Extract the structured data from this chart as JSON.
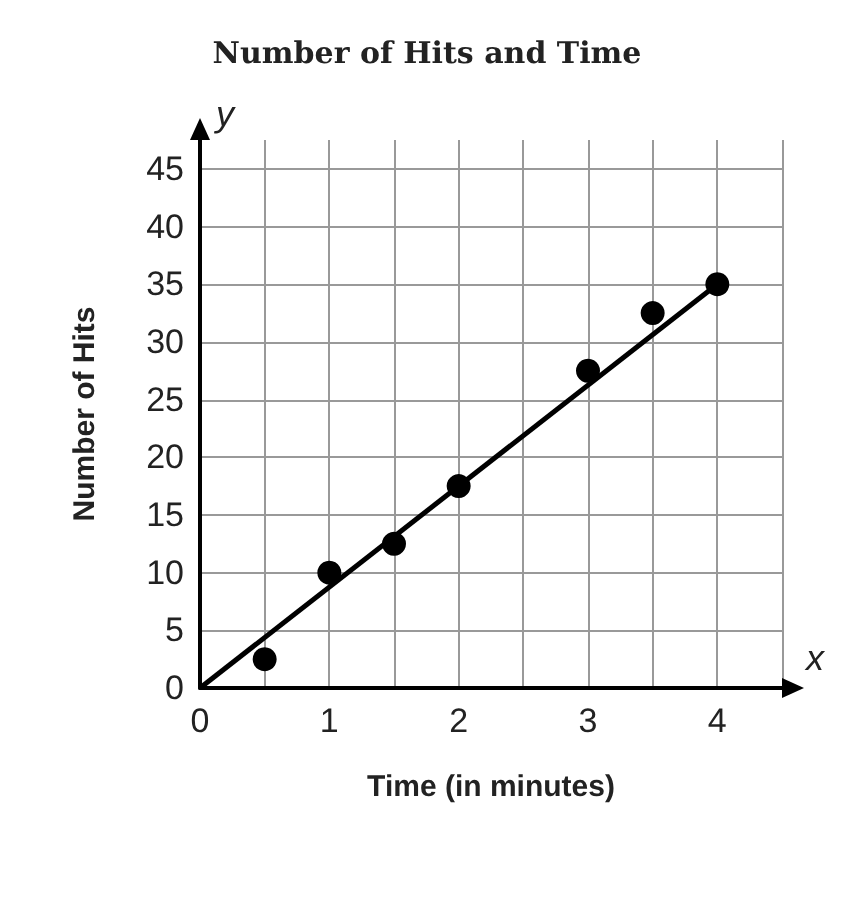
{
  "chart_data": {
    "type": "scatter",
    "title": "Number of Hits and Time",
    "xlabel": "Time (in minutes)",
    "ylabel": "Number of Hits",
    "marker": "circle",
    "series": [
      {
        "color": "#000000",
        "x": [
          0.5,
          1,
          1.5,
          2,
          3,
          3.5,
          4
        ],
        "values": [
          2.5,
          10,
          12.5,
          17.5,
          27.5,
          32.5,
          35
        ]
      },
      {
        "type": "line",
        "color": "#000000",
        "x": [
          0,
          4
        ],
        "values": [
          0,
          35
        ],
        "marker": "none",
        "line_style": "solid"
      }
    ],
    "xlim": [
      0,
      4.5
    ],
    "ylim": [
      0,
      47.5
    ],
    "xticks": [
      0,
      {
        "value": 0.5,
        "label": null
      },
      1,
      {
        "value": 1.5,
        "label": null
      },
      2,
      {
        "value": 2.5,
        "label": null
      },
      3,
      {
        "value": 3.5,
        "label": null
      },
      4,
      {
        "value": 4.5,
        "label": null
      }
    ],
    "yticks": [
      0,
      5,
      10,
      15,
      20,
      25,
      30,
      35,
      40,
      45
    ],
    "grid": true,
    "annotations": [
      "x",
      "y"
    ]
  }
}
